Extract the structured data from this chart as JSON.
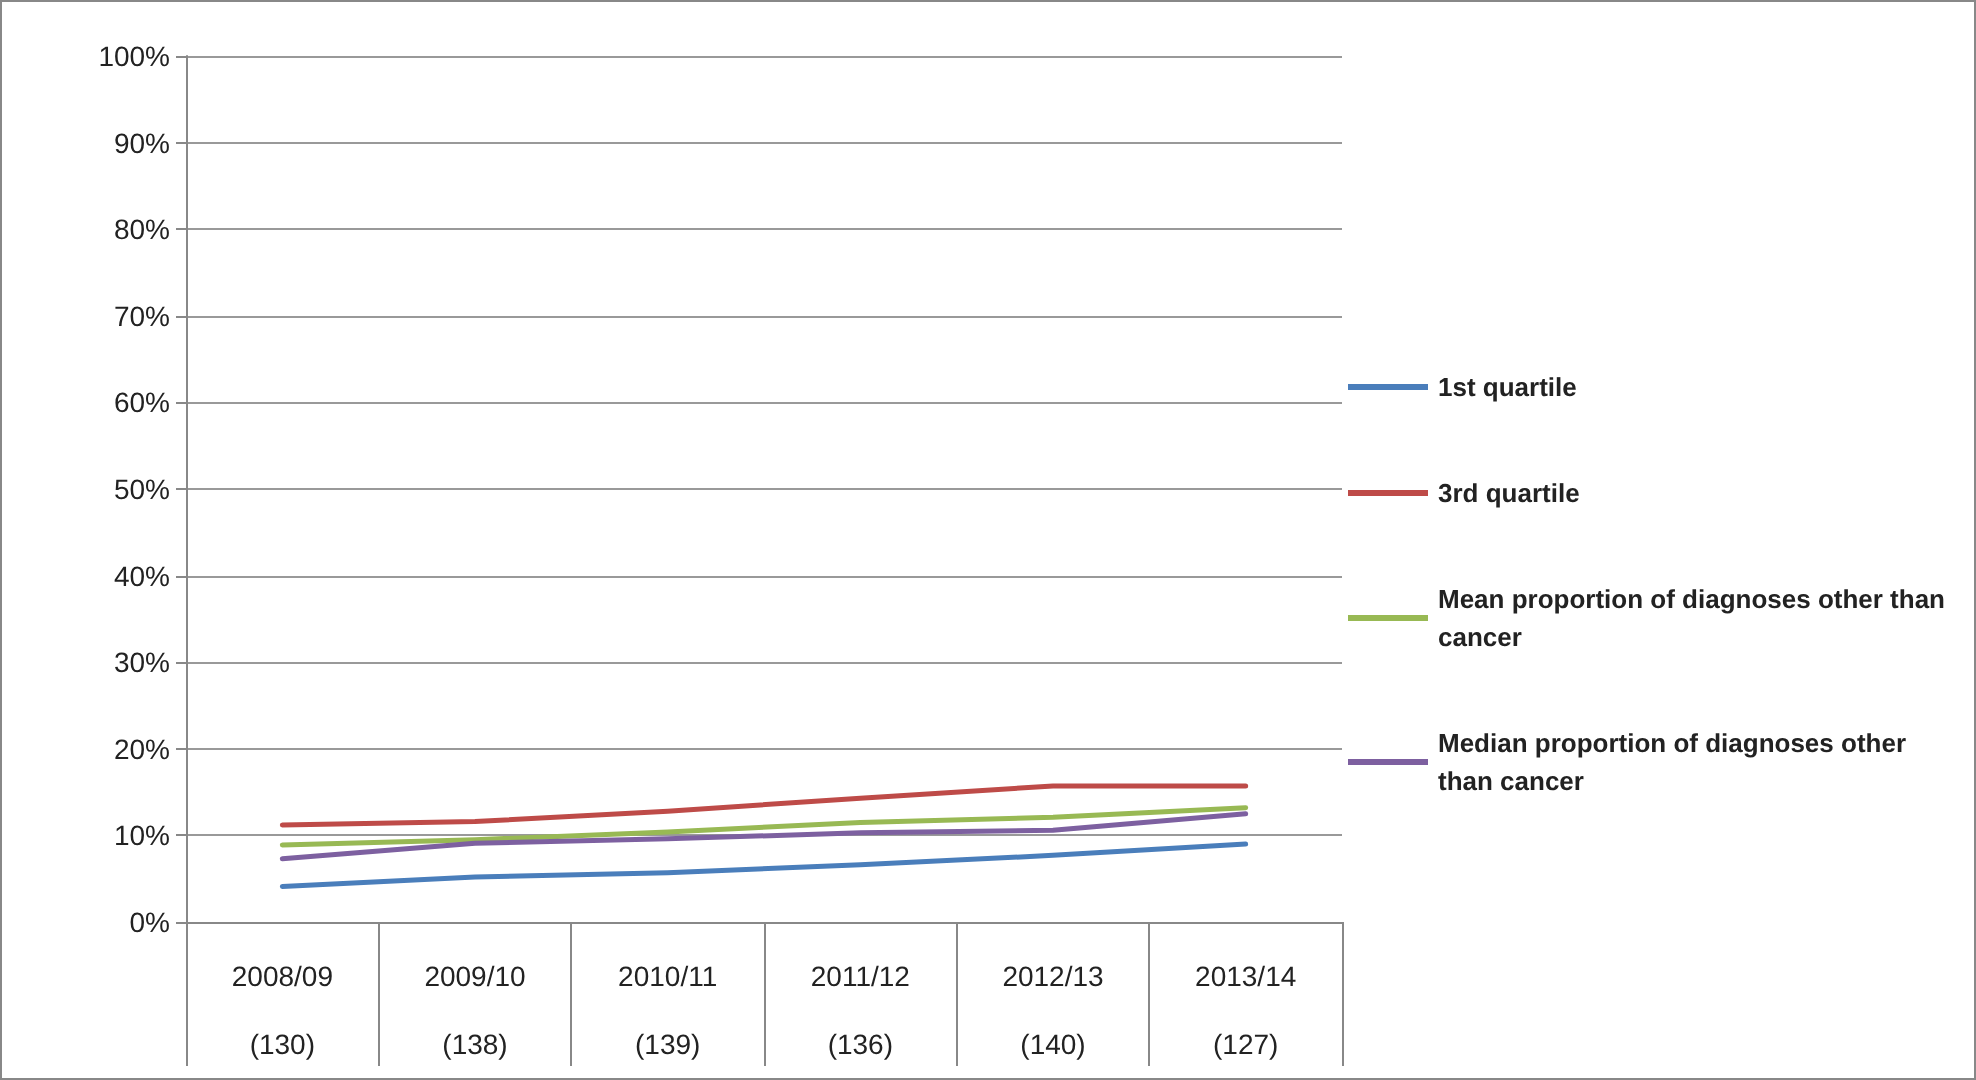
{
  "chart_data": {
    "type": "line",
    "categories": [
      "2008/09\n(130)",
      "2009/10\n(138)",
      "2010/11\n(139)",
      "2011/12\n(136)",
      "2012/13\n(140)",
      "2013/14\n(127)"
    ],
    "series": [
      {
        "name": "1st quartile",
        "color": "#4a7ebb",
        "values": [
          4.1,
          5.2,
          5.7,
          6.6,
          7.7,
          9.0
        ]
      },
      {
        "name": "3rd quartile",
        "color": "#be4b48",
        "values": [
          11.2,
          11.6,
          12.8,
          14.3,
          15.7,
          15.7
        ]
      },
      {
        "name": "Mean proportion of diagnoses other than cancer",
        "color": "#98b954",
        "values": [
          8.9,
          9.5,
          10.4,
          11.5,
          12.1,
          13.2
        ]
      },
      {
        "name": "Median proportion of diagnoses other than cancer",
        "color": "#7d60a0",
        "values": [
          7.3,
          9.1,
          9.6,
          10.3,
          10.6,
          12.5
        ]
      }
    ],
    "ylim": [
      0,
      100
    ],
    "yticks": [
      {
        "value": 0,
        "label": "0%"
      },
      {
        "value": 10,
        "label": "10%"
      },
      {
        "value": 20,
        "label": "20%"
      },
      {
        "value": 30,
        "label": "30%"
      },
      {
        "value": 40,
        "label": "40%"
      },
      {
        "value": 50,
        "label": "50%"
      },
      {
        "value": 60,
        "label": "60%"
      },
      {
        "value": 70,
        "label": "70%"
      },
      {
        "value": 80,
        "label": "80%"
      },
      {
        "value": 90,
        "label": "90%"
      },
      {
        "value": 100,
        "label": "100%"
      }
    ],
    "grid": "y",
    "legend": "right",
    "marker": "none",
    "line_style": "solid"
  }
}
